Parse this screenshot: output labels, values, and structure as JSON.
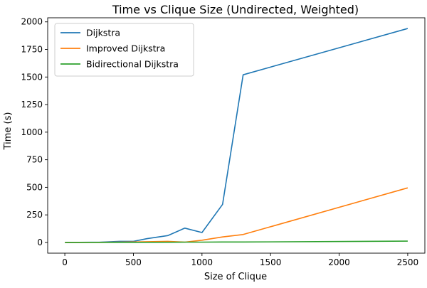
{
  "chart_data": {
    "type": "line",
    "title": "Time vs Clique Size (Undirected, Weighted)",
    "xlabel": "Size of Clique",
    "ylabel": "Time (s)",
    "xlim": [
      -125,
      2625
    ],
    "ylim": [
      -97,
      2037
    ],
    "xticks": [
      0,
      500,
      1000,
      1500,
      2000,
      2500
    ],
    "yticks": [
      0,
      250,
      500,
      750,
      1000,
      1250,
      1500,
      1750,
      2000
    ],
    "grid": false,
    "legend_position": "top-left",
    "series": [
      {
        "name": "Dijkstra",
        "color": "#1f77b4",
        "x": [
          1,
          100,
          250,
          400,
          500,
          600,
          750,
          875,
          1000,
          1150,
          1300,
          2500
        ],
        "y": [
          0,
          1,
          2,
          10,
          10,
          35,
          62,
          130,
          90,
          345,
          1520,
          1940
        ]
      },
      {
        "name": "Improved Dijkstra",
        "color": "#ff7f0e",
        "x": [
          1,
          100,
          250,
          400,
          500,
          750,
          875,
          1000,
          1150,
          1300,
          2500
        ],
        "y": [
          0,
          0,
          1,
          3,
          4,
          10,
          3,
          20,
          50,
          72,
          495
        ]
      },
      {
        "name": "Bidirectional Dijkstra",
        "color": "#2ca02c",
        "x": [
          1,
          100,
          250,
          400,
          500,
          750,
          875,
          1000,
          1150,
          1300,
          2500
        ],
        "y": [
          0,
          0,
          0,
          1,
          1,
          2,
          3,
          3,
          4,
          4,
          12
        ]
      }
    ]
  }
}
